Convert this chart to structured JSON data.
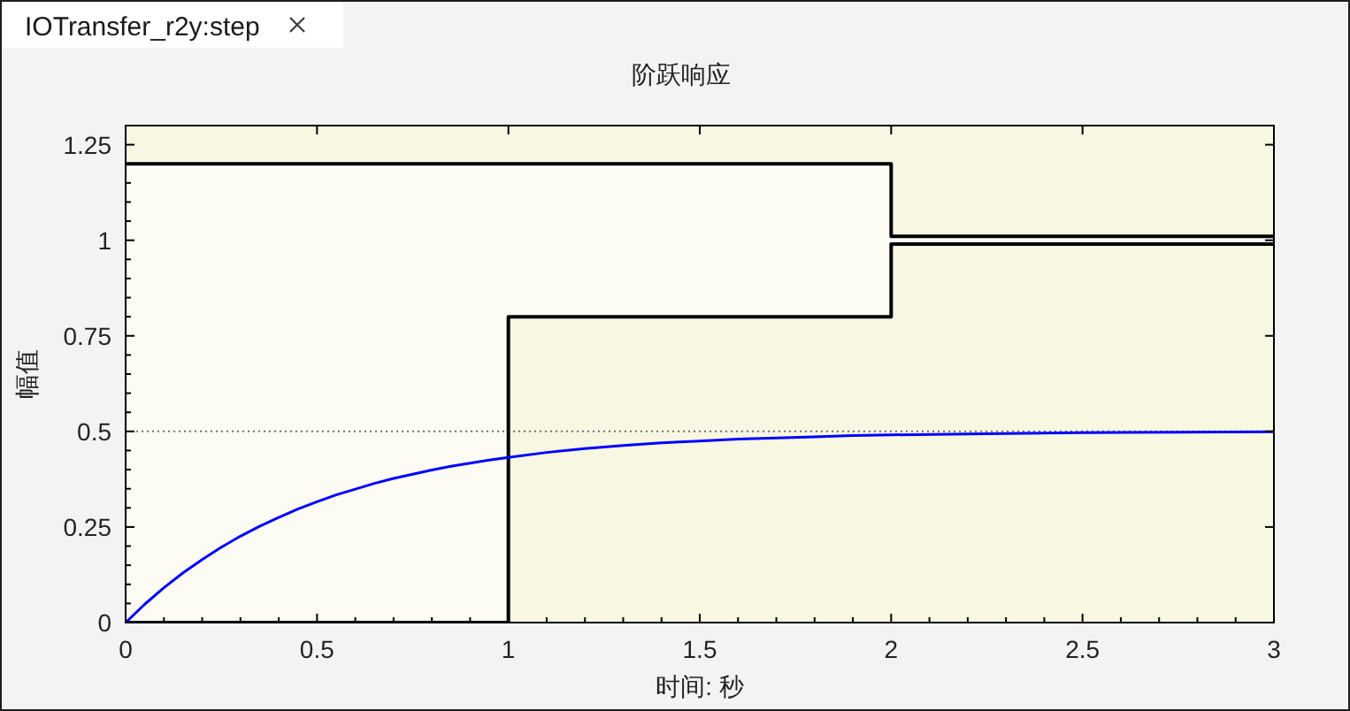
{
  "chart_data": {
    "type": "line",
    "title": "阶跃响应",
    "xlabel": "时间: 秒",
    "ylabel": "幅值",
    "annotations": [
      "IOTransfer_r2y:step"
    ],
    "xlim": [
      0,
      3
    ],
    "ylim": [
      0,
      1.3
    ],
    "xticks": [
      0,
      {
        "value": 0.1,
        "label": null
      },
      {
        "value": 0.2,
        "label": null
      },
      {
        "value": 0.3,
        "label": null
      },
      {
        "value": 0.4,
        "label": null
      },
      0.5,
      {
        "value": 0.6,
        "label": null
      },
      {
        "value": 0.7,
        "label": null
      },
      {
        "value": 0.8,
        "label": null
      },
      {
        "value": 0.9,
        "label": null
      },
      1,
      {
        "value": 1.1,
        "label": null
      },
      {
        "value": 1.2,
        "label": null
      },
      {
        "value": 1.3,
        "label": null
      },
      {
        "value": 1.4,
        "label": null
      },
      1.5,
      {
        "value": 1.6,
        "label": null
      },
      {
        "value": 1.7,
        "label": null
      },
      {
        "value": 1.8,
        "label": null
      },
      {
        "value": 1.9,
        "label": null
      },
      2,
      {
        "value": 2.1,
        "label": null
      },
      {
        "value": 2.2,
        "label": null
      },
      {
        "value": 2.3,
        "label": null
      },
      {
        "value": 2.4,
        "label": null
      },
      2.5,
      {
        "value": 2.6,
        "label": null
      },
      {
        "value": 2.7,
        "label": null
      },
      {
        "value": 2.8,
        "label": null
      },
      {
        "value": 2.9,
        "label": null
      },
      3
    ],
    "yticks": [
      0,
      {
        "value": 0.05,
        "label": null
      },
      {
        "value": 0.1,
        "label": null
      },
      {
        "value": 0.15,
        "label": null
      },
      {
        "value": 0.2,
        "label": null
      },
      0.25,
      {
        "value": 0.3,
        "label": null
      },
      {
        "value": 0.35,
        "label": null
      },
      {
        "value": 0.4,
        "label": null
      },
      {
        "value": 0.45,
        "label": null
      },
      0.5,
      {
        "value": 0.55,
        "label": null
      },
      {
        "value": 0.6,
        "label": null
      },
      {
        "value": 0.65,
        "label": null
      },
      {
        "value": 0.7,
        "label": null
      },
      0.75,
      {
        "value": 0.8,
        "label": null
      },
      {
        "value": 0.85,
        "label": null
      },
      {
        "value": 0.9,
        "label": null
      },
      {
        "value": 0.95,
        "label": null
      },
      1,
      {
        "value": 1.05,
        "label": null
      },
      {
        "value": 1.1,
        "label": null
      },
      {
        "value": 1.15,
        "label": null
      },
      {
        "value": 1.2,
        "label": null
      },
      1.25
    ],
    "series": [
      {
        "type": "step",
        "color": "#000000",
        "x": [
          0,
          1,
          2,
          3
        ],
        "values": [
          1.2,
          1.2,
          1.01,
          1.01
        ],
        "lower": [
          0,
          0.8,
          0.99,
          0.99
        ],
        "upper": [
          1.2,
          1.2,
          1.01,
          1.01
        ]
      },
      {
        "type": "step",
        "color": "#000000",
        "x": [
          0,
          1,
          2,
          3
        ],
        "values": [
          0,
          0.8,
          0.99,
          0.99
        ]
      },
      {
        "color": "#0000ff",
        "x": [
          0,
          0.05,
          0.1,
          0.15,
          0.2,
          0.25,
          0.3,
          0.35,
          0.4,
          0.45,
          0.5,
          0.55,
          0.6,
          0.65,
          0.7,
          0.75,
          0.8,
          0.85,
          0.9,
          0.95,
          1,
          1.1,
          1.2,
          1.3,
          1.4,
          1.5,
          1.6,
          1.7,
          1.8,
          1.9,
          2,
          2.25,
          2.5,
          2.75,
          3
        ],
        "values": [
          0,
          0.048,
          0.091,
          0.13,
          0.165,
          0.197,
          0.226,
          0.252,
          0.275,
          0.297,
          0.316,
          0.334,
          0.349,
          0.364,
          0.377,
          0.388,
          0.399,
          0.409,
          0.417,
          0.425,
          0.432,
          0.445,
          0.455,
          0.463,
          0.47,
          0.475,
          0.48,
          0.483,
          0.486,
          0.489,
          0.491,
          0.494,
          0.497,
          0.498,
          0.499
        ]
      }
    ],
    "ref_lines": [
      {
        "axis": "y",
        "value": 0.5,
        "color": "#6e6e6e",
        "line_style": "dotted"
      }
    ]
  }
}
